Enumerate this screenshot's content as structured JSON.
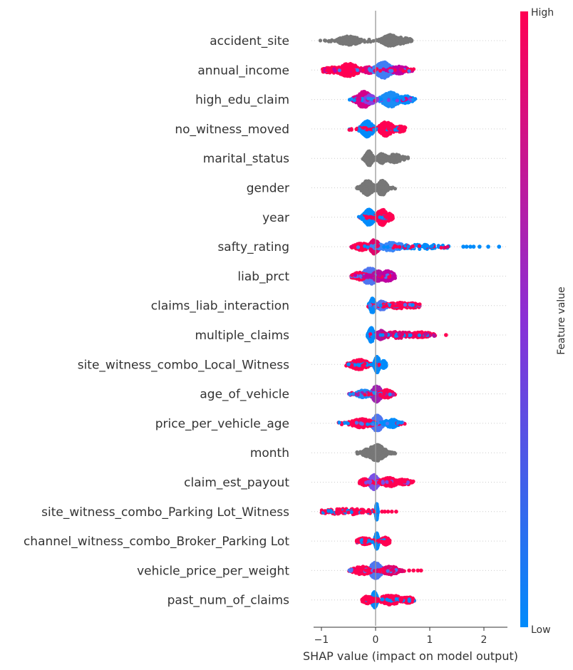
{
  "chart_data": {
    "type": "scatter",
    "xlabel": "SHAP value (impact on model output)",
    "xlim": [
      -1.15,
      2.45
    ],
    "xticks": [
      -1,
      0,
      1,
      2
    ],
    "colorbar": {
      "label": "Feature value",
      "high_label": "High",
      "low_label": "Low",
      "low_color": "#008bfb",
      "high_color": "#ff0052"
    },
    "zero_line": true,
    "grid_rows": true,
    "features": [
      {
        "name": "accident_site",
        "gray": true,
        "pieces": [
          {
            "c": -0.5,
            "s": 0.13,
            "w": 0.5,
            "clr": "#777777"
          },
          {
            "c": 0.27,
            "s": 0.09,
            "w": 0.7,
            "clr": "#777777"
          },
          {
            "c": 0.45,
            "s": 0.12,
            "w": 0.35,
            "clr": "#777777"
          }
        ],
        "range": [
          -1.02,
          0.68
        ]
      },
      {
        "name": "annual_income",
        "gray": false,
        "pieces": [
          {
            "c": -0.5,
            "s": 0.12,
            "w": 0.8,
            "clr": "#ff0052"
          },
          {
            "c": -0.8,
            "s": 0.12,
            "w": 0.3,
            "clr": "#ff0052"
          },
          {
            "c": -0.1,
            "s": 0.08,
            "w": 0.35,
            "clr": "#e0007a"
          },
          {
            "c": 0.15,
            "s": 0.1,
            "w": 1.0,
            "clr": "#3f7ef5"
          },
          {
            "c": 0.45,
            "s": 0.1,
            "w": 0.4,
            "clr": "#c100a0"
          }
        ],
        "range": [
          -0.98,
          0.72
        ]
      },
      {
        "name": "high_edu_claim",
        "gray": false,
        "pieces": [
          {
            "c": -0.22,
            "s": 0.09,
            "w": 1.0,
            "clr": "#d4008a"
          },
          {
            "c": -0.1,
            "s": 0.06,
            "w": 0.5,
            "clr": "#8a3fe0"
          },
          {
            "c": 0.28,
            "s": 0.1,
            "w": 0.9,
            "clr": "#1a8df5"
          },
          {
            "c": 0.55,
            "s": 0.08,
            "w": 0.4,
            "clr": "#008bfb"
          }
        ],
        "range": [
          -0.55,
          0.75
        ]
      },
      {
        "name": "no_witness_moved",
        "gray": false,
        "pieces": [
          {
            "c": -0.15,
            "s": 0.07,
            "w": 1.0,
            "clr": "#008bfb"
          },
          {
            "c": 0.2,
            "s": 0.08,
            "w": 0.9,
            "clr": "#ff0052"
          },
          {
            "c": 0.45,
            "s": 0.06,
            "w": 0.3,
            "clr": "#ff0052"
          }
        ],
        "range": [
          -0.5,
          0.55
        ]
      },
      {
        "name": "marital_status",
        "gray": true,
        "pieces": [
          {
            "c": -0.12,
            "s": 0.04,
            "w": 0.9,
            "clr": "#777777"
          },
          {
            "c": 0.12,
            "s": 0.05,
            "w": 0.55,
            "clr": "#777777"
          },
          {
            "c": 0.35,
            "s": 0.1,
            "w": 0.45,
            "clr": "#777777"
          }
        ],
        "range": [
          -0.25,
          0.6
        ]
      },
      {
        "name": "gender",
        "gray": true,
        "pieces": [
          {
            "c": -0.15,
            "s": 0.07,
            "w": 0.9,
            "clr": "#777777"
          },
          {
            "c": 0.12,
            "s": 0.06,
            "w": 0.9,
            "clr": "#777777"
          }
        ],
        "range": [
          -0.35,
          0.36
        ]
      },
      {
        "name": "year",
        "gray": false,
        "pieces": [
          {
            "c": -0.12,
            "s": 0.06,
            "w": 1.0,
            "clr": "#008bfb"
          },
          {
            "c": 0.12,
            "s": 0.06,
            "w": 1.0,
            "clr": "#ff0052"
          },
          {
            "c": 0.25,
            "s": 0.04,
            "w": 0.4,
            "clr": "#ff0052"
          }
        ],
        "range": [
          -0.32,
          0.32
        ]
      },
      {
        "name": "safty_rating",
        "gray": false,
        "pieces": [
          {
            "c": -0.02,
            "s": 0.05,
            "w": 0.9,
            "clr": "#e0006a"
          },
          {
            "c": -0.25,
            "s": 0.08,
            "w": 0.4,
            "clr": "#ff0052"
          },
          {
            "c": 0.3,
            "s": 0.15,
            "w": 0.45,
            "clr": "#3a85f7"
          },
          {
            "c": 0.85,
            "s": 0.25,
            "w": 0.22,
            "clr": "#008bfb"
          }
        ],
        "range": [
          -0.45,
          1.35
        ],
        "outliers": [
          1.62,
          1.68,
          1.75,
          1.81,
          1.92,
          2.08,
          2.28
        ]
      },
      {
        "name": "liab_prct",
        "gray": false,
        "pieces": [
          {
            "c": -0.1,
            "s": 0.1,
            "w": 1.0,
            "clr": "#4f76f0"
          },
          {
            "c": 0.05,
            "s": 0.06,
            "w": 0.6,
            "clr": "#b3109a"
          },
          {
            "c": -0.3,
            "s": 0.08,
            "w": 0.4,
            "clr": "#ff0052"
          },
          {
            "c": 0.22,
            "s": 0.08,
            "w": 0.6,
            "clr": "#c000a0"
          }
        ],
        "range": [
          -0.45,
          0.36
        ]
      },
      {
        "name": "claims_liab_interaction",
        "gray": false,
        "pieces": [
          {
            "c": -0.06,
            "s": 0.03,
            "w": 0.9,
            "clr": "#008bfb"
          },
          {
            "c": 0.12,
            "s": 0.05,
            "w": 0.5,
            "clr": "#4f76f0"
          },
          {
            "c": 0.45,
            "s": 0.15,
            "w": 0.3,
            "clr": "#ff0052"
          },
          {
            "c": 0.7,
            "s": 0.07,
            "w": 0.25,
            "clr": "#ff0052"
          }
        ],
        "range": [
          -0.15,
          0.82
        ]
      },
      {
        "name": "multiple_claims",
        "gray": false,
        "pieces": [
          {
            "c": -0.08,
            "s": 0.03,
            "w": 0.9,
            "clr": "#008bfb"
          },
          {
            "c": 0.1,
            "s": 0.05,
            "w": 0.5,
            "clr": "#b3109a"
          },
          {
            "c": 0.45,
            "s": 0.2,
            "w": 0.35,
            "clr": "#e0006a"
          },
          {
            "c": 0.85,
            "s": 0.12,
            "w": 0.3,
            "clr": "#ff0052"
          }
        ],
        "range": [
          -0.15,
          1.1
        ],
        "outliers": [
          1.3
        ]
      },
      {
        "name": "site_witness_combo_Local_Witness",
        "gray": false,
        "pieces": [
          {
            "c": -0.3,
            "s": 0.1,
            "w": 0.6,
            "clr": "#ff0052"
          },
          {
            "c": 0.03,
            "s": 0.03,
            "w": 1.0,
            "clr": "#008bfb"
          },
          {
            "c": 0.15,
            "s": 0.03,
            "w": 0.4,
            "clr": "#008bfb"
          }
        ],
        "range": [
          -0.55,
          0.2
        ]
      },
      {
        "name": "age_of_vehicle",
        "gray": false,
        "pieces": [
          {
            "c": 0.02,
            "s": 0.06,
            "w": 1.0,
            "clr": "#a020b0"
          },
          {
            "c": -0.22,
            "s": 0.08,
            "w": 0.4,
            "clr": "#1f8af5"
          },
          {
            "c": 0.2,
            "s": 0.07,
            "w": 0.45,
            "clr": "#ff0052"
          }
        ],
        "range": [
          -0.5,
          0.4
        ]
      },
      {
        "name": "price_per_vehicle_age",
        "gray": false,
        "pieces": [
          {
            "c": 0.03,
            "s": 0.06,
            "w": 1.0,
            "clr": "#4f76f0"
          },
          {
            "c": -0.25,
            "s": 0.12,
            "w": 0.5,
            "clr": "#ff0052"
          },
          {
            "c": 0.3,
            "s": 0.08,
            "w": 0.45,
            "clr": "#008bfb"
          }
        ],
        "range": [
          -0.7,
          0.58
        ]
      },
      {
        "name": "month",
        "gray": true,
        "pieces": [
          {
            "c": 0.02,
            "s": 0.1,
            "w": 1.0,
            "clr": "#777777"
          },
          {
            "c": -0.15,
            "s": 0.06,
            "w": 0.4,
            "clr": "#777777"
          }
        ],
        "range": [
          -0.35,
          0.38
        ]
      },
      {
        "name": "claim_est_payout",
        "gray": false,
        "pieces": [
          {
            "c": -0.03,
            "s": 0.05,
            "w": 0.9,
            "clr": "#7a50e8"
          },
          {
            "c": 0.25,
            "s": 0.1,
            "w": 0.5,
            "clr": "#ff0052"
          },
          {
            "c": 0.52,
            "s": 0.08,
            "w": 0.3,
            "clr": "#ff0052"
          },
          {
            "c": -0.2,
            "s": 0.05,
            "w": 0.35,
            "clr": "#ff0052"
          }
        ],
        "range": [
          -0.3,
          0.7
        ]
      },
      {
        "name": "site_witness_combo_Parking Lot_Witness",
        "gray": false,
        "pieces": [
          {
            "c": -0.5,
            "s": 0.28,
            "w": 0.3,
            "clr": "#ff0052"
          },
          {
            "c": 0.02,
            "s": 0.01,
            "w": 1.0,
            "clr": "#008bfb"
          }
        ],
        "range": [
          -1.0,
          0.05
        ],
        "extra": [
          0.12,
          0.17,
          0.23,
          0.3,
          0.38
        ]
      },
      {
        "name": "channel_witness_combo_Broker_Parking Lot",
        "gray": false,
        "pieces": [
          {
            "c": 0.02,
            "s": 0.02,
            "w": 1.0,
            "clr": "#008bfb"
          },
          {
            "c": -0.2,
            "s": 0.08,
            "w": 0.35,
            "clr": "#ff0052"
          },
          {
            "c": 0.18,
            "s": 0.05,
            "w": 0.4,
            "clr": "#ff0052"
          }
        ],
        "range": [
          -0.35,
          0.26
        ]
      },
      {
        "name": "vehicle_price_per_weight",
        "gray": false,
        "pieces": [
          {
            "c": 0.0,
            "s": 0.07,
            "w": 1.0,
            "clr": "#4f76f0"
          },
          {
            "c": -0.25,
            "s": 0.1,
            "w": 0.45,
            "clr": "#ff0052"
          },
          {
            "c": 0.28,
            "s": 0.1,
            "w": 0.45,
            "clr": "#e0006a"
          }
        ],
        "range": [
          -0.55,
          0.58
        ],
        "outliers": [
          0.62,
          0.7,
          0.78,
          0.84
        ]
      },
      {
        "name": "past_num_of_claims",
        "gray": false,
        "pieces": [
          {
            "c": -0.02,
            "s": 0.03,
            "w": 1.0,
            "clr": "#008bfb"
          },
          {
            "c": -0.15,
            "s": 0.05,
            "w": 0.4,
            "clr": "#ff0052"
          },
          {
            "c": 0.28,
            "s": 0.14,
            "w": 0.55,
            "clr": "#ff0052"
          },
          {
            "c": 0.6,
            "s": 0.07,
            "w": 0.3,
            "clr": "#ff0052"
          }
        ],
        "range": [
          -0.25,
          0.72
        ]
      }
    ]
  }
}
